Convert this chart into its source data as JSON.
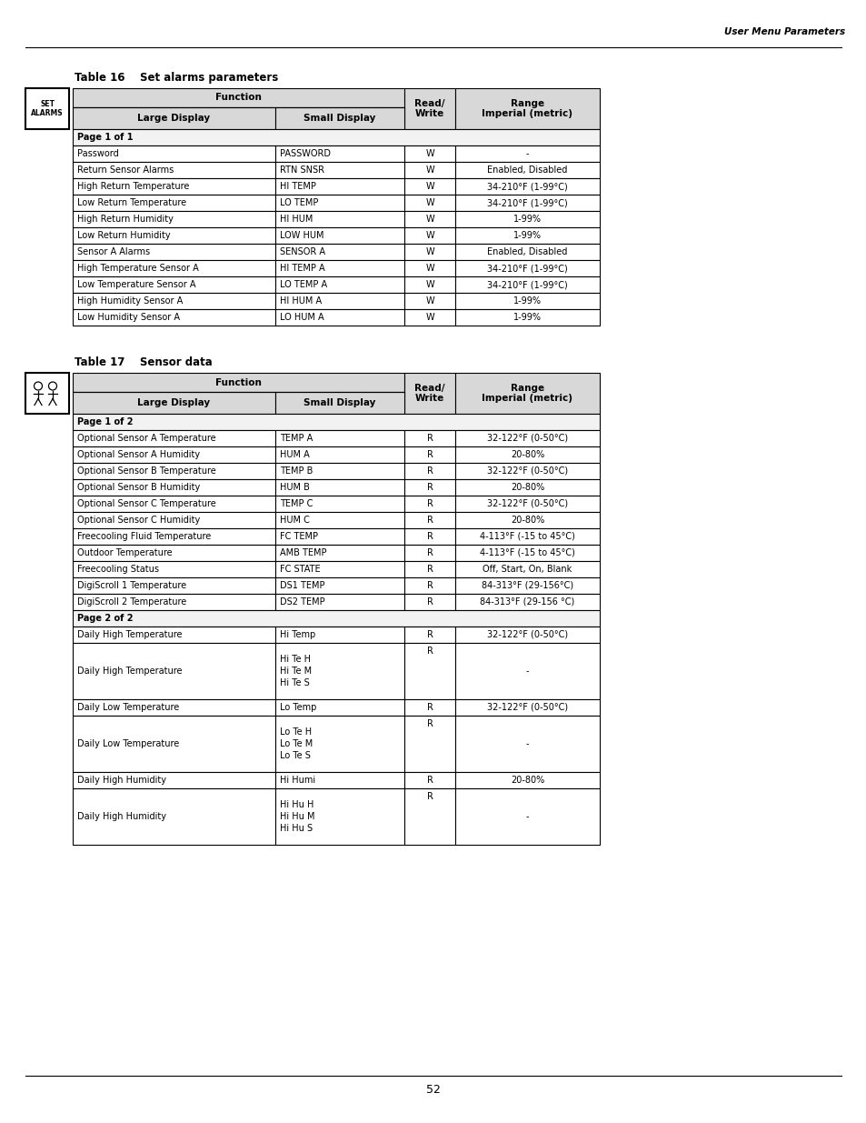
{
  "page_header_right": "User Menu Parameters",
  "page_footer": "52",
  "table16_title_num": "Table 16",
  "table16_title_text": "Set alarms parameters",
  "table17_title_num": "Table 17",
  "table17_title_text": "Sensor data",
  "table16_rows": [
    {
      "type": "page",
      "text": "Page 1 of 1"
    },
    {
      "type": "data",
      "col1": "Password",
      "col2": "PASSWORD",
      "col3": "W",
      "col4": "-"
    },
    {
      "type": "data",
      "col1": "Return Sensor Alarms",
      "col2": "RTN SNSR",
      "col3": "W",
      "col4": "Enabled, Disabled"
    },
    {
      "type": "data",
      "col1": "High Return Temperature",
      "col2": "HI TEMP",
      "col3": "W",
      "col4": "34-210°F (1-99°C)"
    },
    {
      "type": "data",
      "col1": "Low Return Temperature",
      "col2": "LO TEMP",
      "col3": "W",
      "col4": "34-210°F (1-99°C)"
    },
    {
      "type": "data",
      "col1": "High Return Humidity",
      "col2": "HI HUM",
      "col3": "W",
      "col4": "1-99%"
    },
    {
      "type": "data",
      "col1": "Low Return Humidity",
      "col2": "LOW HUM",
      "col3": "W",
      "col4": "1-99%"
    },
    {
      "type": "data",
      "col1": "Sensor A Alarms",
      "col2": "SENSOR A",
      "col3": "W",
      "col4": "Enabled, Disabled"
    },
    {
      "type": "data",
      "col1": "High Temperature Sensor A",
      "col2": "HI TEMP A",
      "col3": "W",
      "col4": "34-210°F (1-99°C)"
    },
    {
      "type": "data",
      "col1": "Low Temperature Sensor A",
      "col2": "LO TEMP A",
      "col3": "W",
      "col4": "34-210°F (1-99°C)"
    },
    {
      "type": "data",
      "col1": "High Humidity Sensor A",
      "col2": "HI HUM A",
      "col3": "W",
      "col4": "1-99%"
    },
    {
      "type": "data",
      "col1": "Low Humidity Sensor A",
      "col2": "LO HUM A",
      "col3": "W",
      "col4": "1-99%"
    }
  ],
  "table17_rows": [
    {
      "type": "page",
      "text": "Page 1 of 2"
    },
    {
      "type": "data",
      "col1": "Optional Sensor A Temperature",
      "col2": "TEMP A",
      "col3": "R",
      "col4": "32-122°F (0-50°C)"
    },
    {
      "type": "data",
      "col1": "Optional Sensor A Humidity",
      "col2": "HUM A",
      "col3": "R",
      "col4": "20-80%"
    },
    {
      "type": "data",
      "col1": "Optional Sensor B Temperature",
      "col2": "TEMP B",
      "col3": "R",
      "col4": "32-122°F (0-50°C)"
    },
    {
      "type": "data",
      "col1": "Optional Sensor B Humidity",
      "col2": "HUM B",
      "col3": "R",
      "col4": "20-80%"
    },
    {
      "type": "data",
      "col1": "Optional Sensor C Temperature",
      "col2": "TEMP C",
      "col3": "R",
      "col4": "32-122°F (0-50°C)"
    },
    {
      "type": "data",
      "col1": "Optional Sensor C Humidity",
      "col2": "HUM C",
      "col3": "R",
      "col4": "20-80%"
    },
    {
      "type": "data",
      "col1": "Freecooling Fluid Temperature",
      "col2": "FC TEMP",
      "col3": "R",
      "col4": "4-113°F (-15 to 45°C)"
    },
    {
      "type": "data",
      "col1": "Outdoor Temperature",
      "col2": "AMB TEMP",
      "col3": "R",
      "col4": "4-113°F (-15 to 45°C)"
    },
    {
      "type": "data",
      "col1": "Freecooling Status",
      "col2": "FC STATE",
      "col3": "R",
      "col4": "Off, Start, On, Blank"
    },
    {
      "type": "data",
      "col1": "DigiScroll 1 Temperature",
      "col2": "DS1 TEMP",
      "col3": "R",
      "col4": "84-313°F (29-156°C)"
    },
    {
      "type": "data",
      "col1": "DigiScroll 2 Temperature",
      "col2": "DS2 TEMP",
      "col3": "R",
      "col4": "84-313°F (29-156 °C)"
    },
    {
      "type": "page",
      "text": "Page 2 of 2"
    },
    {
      "type": "data",
      "col1": "Daily High Temperature",
      "col2": "Hi Temp",
      "col3": "R",
      "col4": "32-122°F (0-50°C)"
    },
    {
      "type": "data_multi",
      "col1": "Daily High Temperature",
      "col2": "Hi Te H\nHi Te M\nHi Te S",
      "col3": "R",
      "col4": "-"
    },
    {
      "type": "data",
      "col1": "Daily Low Temperature",
      "col2": "Lo Temp",
      "col3": "R",
      "col4": "32-122°F (0-50°C)"
    },
    {
      "type": "data_multi",
      "col1": "Daily Low Temperature",
      "col2": "Lo Te H\nLo Te M\nLo Te S",
      "col3": "R",
      "col4": "-"
    },
    {
      "type": "data",
      "col1": "Daily High Humidity",
      "col2": "Hi Humi",
      "col3": "R",
      "col4": "20-80%"
    },
    {
      "type": "data_multi",
      "col1": "Daily High Humidity",
      "col2": "Hi Hu H\nHi Hu M\nHi Hu S",
      "col3": "R",
      "col4": "-"
    }
  ],
  "bg_color": "#ffffff",
  "header_bg": "#d8d8d8",
  "lw": 0.8
}
